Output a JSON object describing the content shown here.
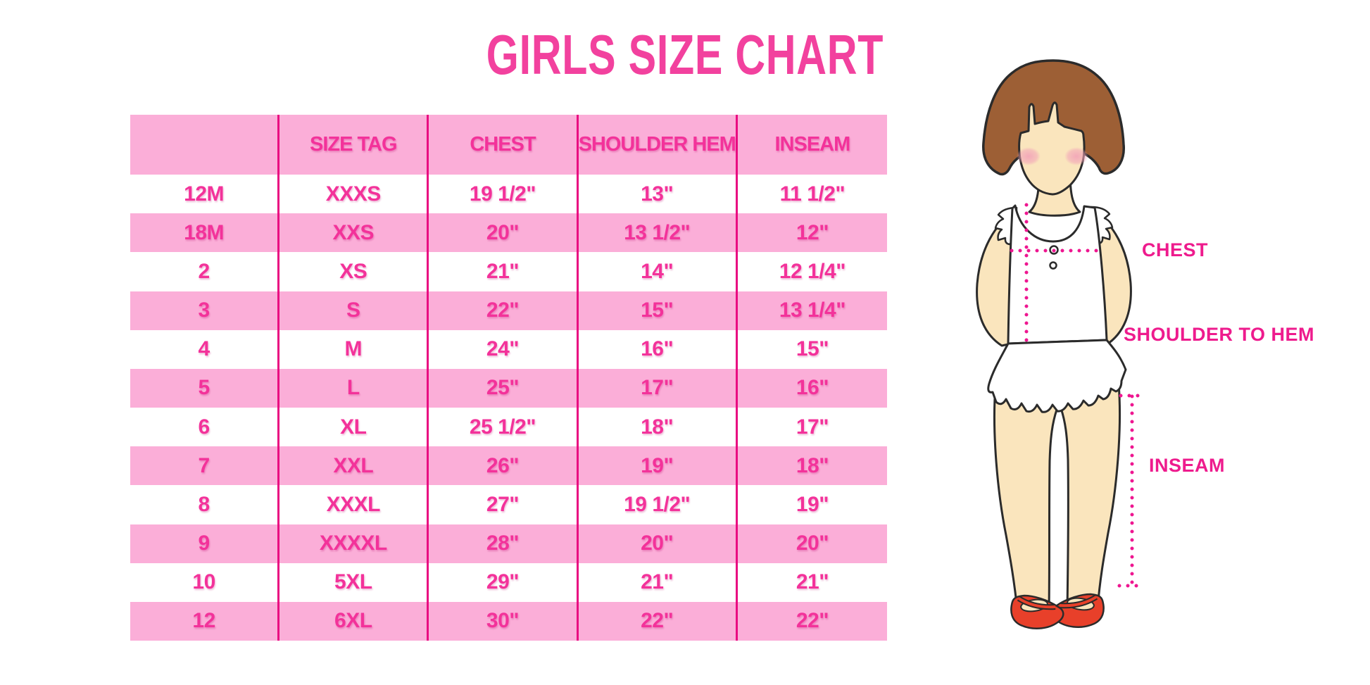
{
  "title": "GIRLS SIZE CHART",
  "chart_data": {
    "type": "table",
    "title": "GIRLS SIZE CHART",
    "columns": [
      "",
      "SIZE TAG",
      "CHEST",
      "SHOULDER HEM",
      "INSEAM"
    ],
    "rows": [
      [
        "12M",
        "XXXS",
        "19 1/2\"",
        "13\"",
        "11 1/2\""
      ],
      [
        "18M",
        "XXS",
        "20\"",
        "13 1/2\"",
        "12\""
      ],
      [
        "2",
        "XS",
        "21\"",
        "14\"",
        "12 1/4\""
      ],
      [
        "3",
        "S",
        "22\"",
        "15\"",
        "13 1/4\""
      ],
      [
        "4",
        "M",
        "24\"",
        "16\"",
        "15\""
      ],
      [
        "5",
        "L",
        "25\"",
        "17\"",
        "16\""
      ],
      [
        "6",
        "XL",
        "25 1/2\"",
        "18\"",
        "17\""
      ],
      [
        "7",
        "XXL",
        "26\"",
        "19\"",
        "18\""
      ],
      [
        "8",
        "XXXL",
        "27\"",
        "19 1/2\"",
        "19\""
      ],
      [
        "9",
        "XXXXL",
        "28\"",
        "20\"",
        "20\""
      ],
      [
        "10",
        "5XL",
        "29\"",
        "21\"",
        "21\""
      ],
      [
        "12",
        "6XL",
        "30\"",
        "22\"",
        "22\""
      ]
    ],
    "row_striping": "header pink, then alternating white/pink starting with white"
  },
  "figure": {
    "description": "cartoon girl with brown bob haircut, white sleeveless ruffled top and red mary-jane shoes, with dotted measurement guide lines",
    "labels": {
      "chest": "CHEST",
      "shoulder_to_hem": "SHOULDER TO HEM",
      "inseam": "INSEAM"
    }
  },
  "colors": {
    "title_pink": "#f2419e",
    "row_pink": "#fbaed8",
    "cell_text": "#f3329a",
    "divider": "#e90a81",
    "dotted_line": "#ee1690",
    "label_text": "#ee1b8d",
    "hair_brown": "#9d5f35",
    "skin": "#fae5bd",
    "shoe_red": "#e8402a"
  }
}
